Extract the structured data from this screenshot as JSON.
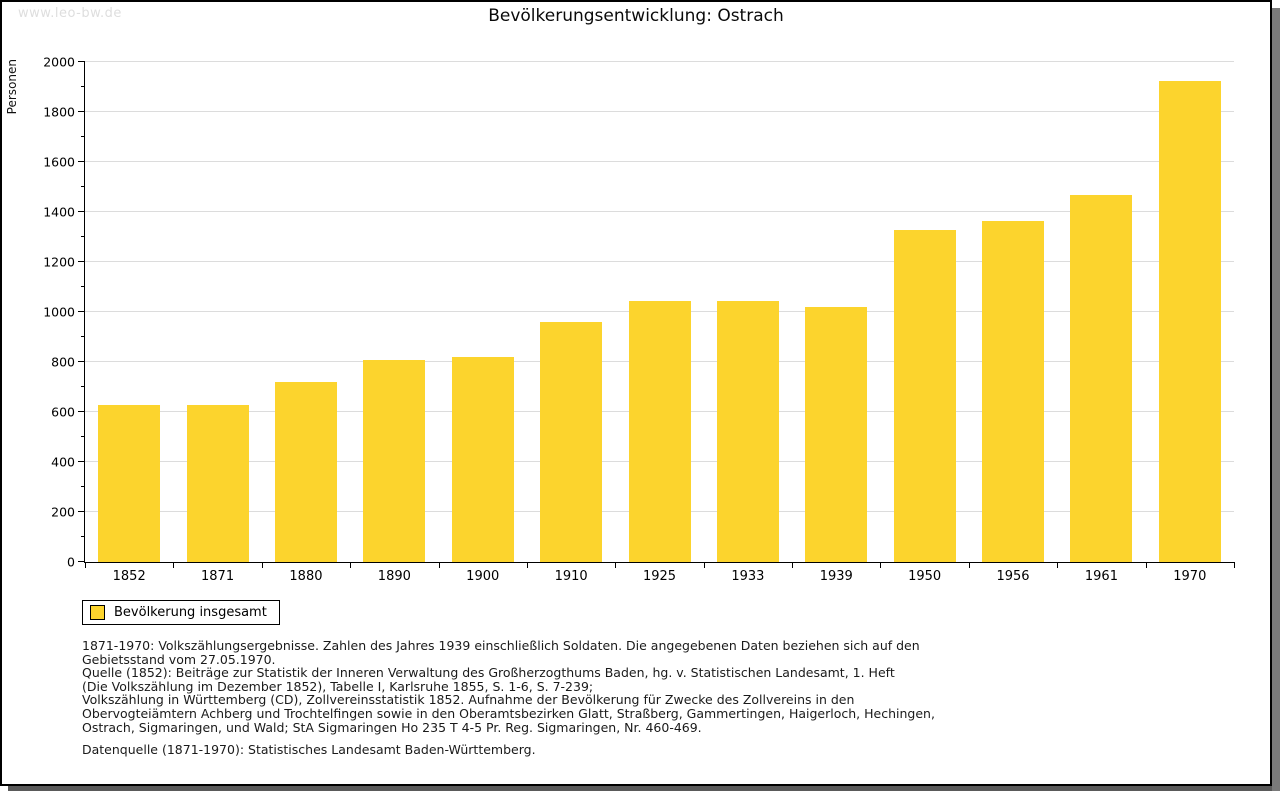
{
  "watermark": "www.leo-bw.de",
  "chart_data": {
    "type": "bar",
    "title": "Bevölkerungsentwicklung: Ostrach",
    "xlabel": "",
    "ylabel": "Personen",
    "categories": [
      "1852",
      "1871",
      "1880",
      "1890",
      "1900",
      "1910",
      "1925",
      "1933",
      "1939",
      "1950",
      "1956",
      "1961",
      "1970"
    ],
    "values": [
      630,
      630,
      720,
      810,
      820,
      960,
      1045,
      1045,
      1020,
      1330,
      1365,
      1470,
      1925
    ],
    "ylim": [
      0,
      2000
    ],
    "ytick_step": 200,
    "yminor_step": 100,
    "grid": "horizontal-major",
    "legend_position": "bottom-left",
    "bar_color": "#fcd42d"
  },
  "legend": {
    "label": "Bevölkerung insgesamt",
    "swatch_color": "#fcd42d"
  },
  "footnotes": {
    "lines": [
      "1871-1970: Volkszählungsergebnisse. Zahlen des Jahres 1939 einschließlich Soldaten. Die angegebenen Daten beziehen sich auf den",
      "Gebietsstand vom 27.05.1970.",
      "Quelle (1852): Beiträge zur Statistik der Inneren Verwaltung des Großherzogthums Baden, hg. v. Statistischen Landesamt, 1. Heft",
      "(Die Volkszählung im Dezember 1852), Tabelle I, Karlsruhe 1855, S. 1-6, S. 7-239;",
      "Volkszählung in Württemberg (CD), Zollvereinsstatistik 1852. Aufnahme der Bevölkerung für Zwecke des Zollvereins in den",
      "Obervogteiämtern Achberg und Trochtelfingen sowie in den Oberamtsbezirken Glatt, Straßberg, Gammertingen, Haigerloch, Hechingen,",
      "Ostrach, Sigmaringen, und Wald; StA Sigmaringen Ho 235 T 4-5 Pr. Reg. Sigmaringen, Nr. 460-469."
    ],
    "datasource": "Datenquelle (1871-1970): Statistisches Landesamt Baden-Württemberg."
  },
  "colors": {
    "bar": "#fcd42d",
    "grid": "#dcdcdc",
    "axis": "#000000",
    "watermark": "#dedede",
    "shadow": "#6f6f6f"
  }
}
